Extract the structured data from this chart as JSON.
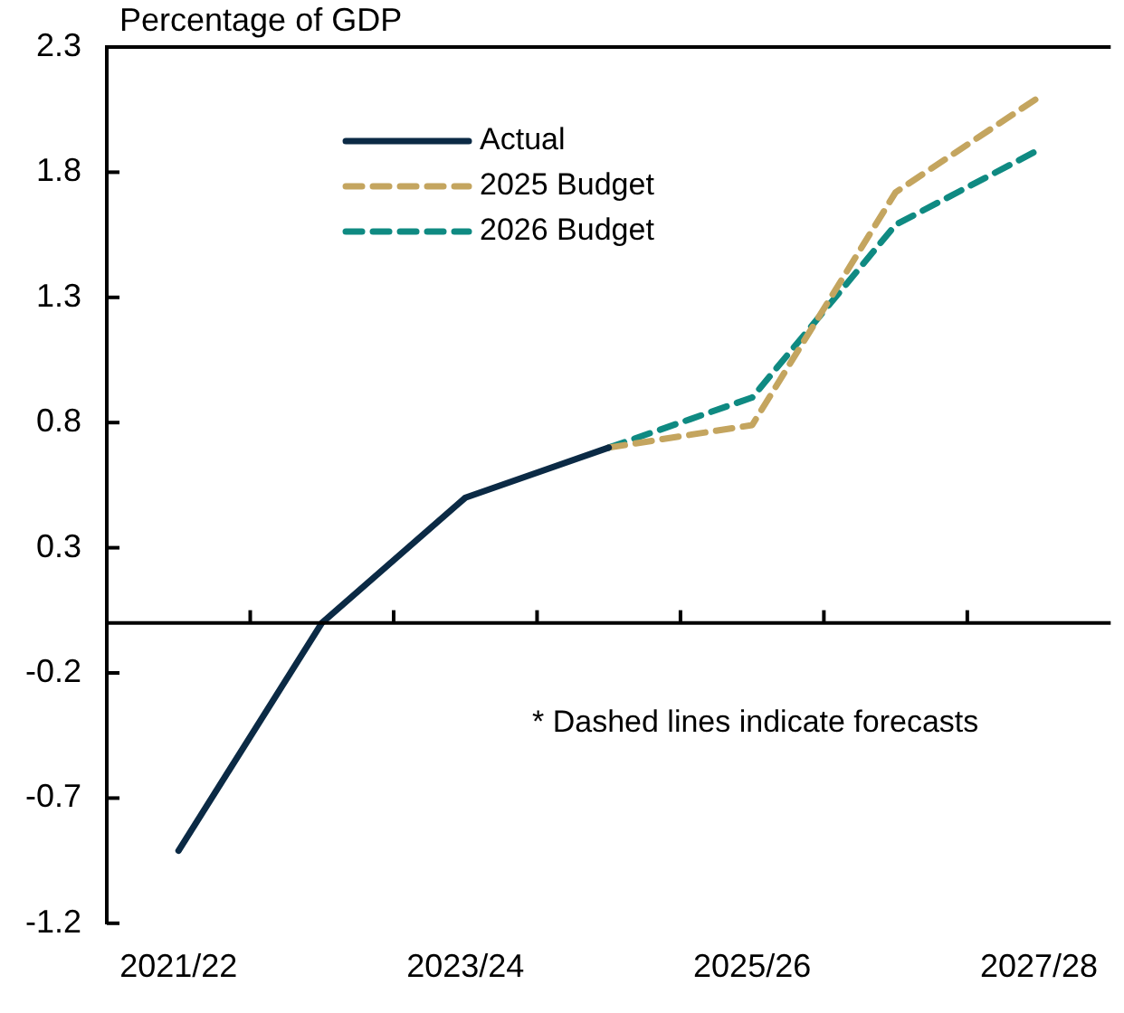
{
  "chart_data": {
    "type": "line",
    "ylabel": "Percentage of GDP",
    "categories": [
      "2021/22",
      null,
      "2023/24",
      null,
      "2025/26",
      null,
      "2027/28"
    ],
    "series": [
      {
        "name": "Actual",
        "color": "#0b2a45",
        "line_style": "solid",
        "values": [
          -0.91,
          0,
          0.5,
          0.7,
          null,
          null,
          null
        ]
      },
      {
        "name": "2025 Budget",
        "color": "#c4a55f",
        "line_style": "dashed",
        "values": [
          null,
          null,
          null,
          0.7,
          0.79,
          1.72,
          2.1
        ]
      },
      {
        "name": "2026 Budget",
        "color": "#0f8a82",
        "line_style": "dashed",
        "values": [
          null,
          null,
          null,
          0.7,
          0.9,
          1.59,
          1.89
        ]
      }
    ],
    "ylim": [
      -1.2,
      2.3
    ],
    "yticks": [
      -1.2,
      -0.7,
      -0.2,
      0.3,
      0.8,
      1.3,
      1.8,
      2.3
    ],
    "grid": false,
    "legend": "top left",
    "marker": "none",
    "annotations": [
      "* Dashed lines indicate forecasts"
    ]
  }
}
